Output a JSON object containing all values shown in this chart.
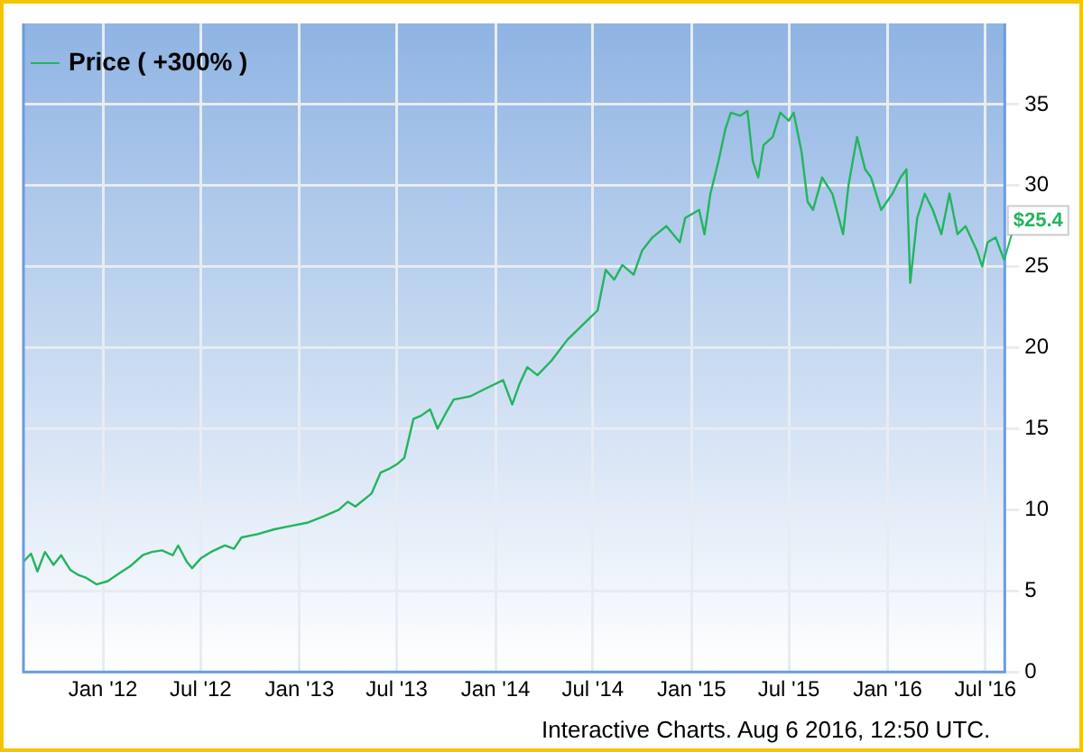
{
  "chart_data": {
    "type": "line",
    "x": [
      "2011-08-06",
      "2011-08-20",
      "2011-09-01",
      "2011-09-15",
      "2011-10-01",
      "2011-10-15",
      "2011-11-01",
      "2011-11-15",
      "2011-12-01",
      "2011-12-20",
      "2012-01-10",
      "2012-02-01",
      "2012-02-20",
      "2012-03-15",
      "2012-04-01",
      "2012-04-20",
      "2012-05-10",
      "2012-05-20",
      "2012-06-05",
      "2012-06-15",
      "2012-07-01",
      "2012-07-20",
      "2012-08-15",
      "2012-09-01",
      "2012-09-15",
      "2012-10-15",
      "2012-11-15",
      "2012-12-15",
      "2013-01-15",
      "2013-02-15",
      "2013-03-15",
      "2013-04-01",
      "2013-04-15",
      "2013-05-15",
      "2013-06-01",
      "2013-06-15",
      "2013-07-01",
      "2013-07-15",
      "2013-08-01",
      "2013-08-15",
      "2013-09-01",
      "2013-09-15",
      "2013-10-01",
      "2013-10-15",
      "2013-11-15",
      "2013-12-15",
      "2014-01-15",
      "2014-02-01",
      "2014-02-15",
      "2014-03-01",
      "2014-03-20",
      "2014-04-15",
      "2014-05-15",
      "2014-06-15",
      "2014-07-10",
      "2014-07-25",
      "2014-08-10",
      "2014-08-25",
      "2014-09-15",
      "2014-10-01",
      "2014-10-20",
      "2014-11-15",
      "2014-12-10",
      "2014-12-20",
      "2015-01-15",
      "2015-01-25",
      "2015-02-05",
      "2015-02-20",
      "2015-03-05",
      "2015-03-15",
      "2015-04-01",
      "2015-04-15",
      "2015-04-25",
      "2015-05-05",
      "2015-05-15",
      "2015-06-01",
      "2015-06-15",
      "2015-07-01",
      "2015-07-10",
      "2015-07-25",
      "2015-08-05",
      "2015-08-15",
      "2015-09-01",
      "2015-09-20",
      "2015-10-10",
      "2015-10-20",
      "2015-11-05",
      "2015-11-20",
      "2015-12-01",
      "2015-12-20",
      "2016-01-10",
      "2016-01-25",
      "2016-02-05",
      "2016-02-12",
      "2016-02-25",
      "2016-03-10",
      "2016-03-25",
      "2016-04-10",
      "2016-04-25",
      "2016-05-10",
      "2016-05-25",
      "2016-06-15",
      "2016-06-25",
      "2016-07-05",
      "2016-07-20",
      "2016-08-05"
    ],
    "series": [
      {
        "name": "Price ( +300% )",
        "color": "#22b55e",
        "values": [
          6.8,
          7.3,
          6.2,
          7.4,
          6.6,
          7.2,
          6.3,
          6.0,
          5.8,
          5.4,
          5.6,
          6.1,
          6.5,
          7.2,
          7.4,
          7.5,
          7.2,
          7.8,
          6.8,
          6.4,
          7.0,
          7.4,
          7.8,
          7.6,
          8.3,
          8.5,
          8.8,
          9.0,
          9.2,
          9.6,
          10.0,
          10.5,
          10.2,
          11.0,
          12.3,
          12.5,
          12.8,
          13.2,
          15.6,
          15.8,
          16.2,
          15.0,
          16.0,
          16.8,
          17.0,
          17.5,
          18.0,
          16.5,
          17.8,
          18.8,
          18.3,
          19.2,
          20.5,
          21.5,
          22.3,
          24.8,
          24.2,
          25.1,
          24.5,
          26.0,
          26.8,
          27.5,
          26.5,
          28.0,
          28.5,
          27.0,
          29.5,
          31.5,
          33.5,
          34.5,
          34.3,
          34.6,
          31.5,
          30.5,
          32.5,
          33.0,
          34.5,
          34.0,
          34.5,
          32.0,
          29.0,
          28.5,
          30.5,
          29.5,
          27.0,
          30.0,
          33.0,
          31.0,
          30.5,
          28.5,
          29.5,
          30.5,
          31.0,
          24.0,
          28.0,
          29.5,
          28.5,
          27.0,
          29.5,
          27.0,
          27.5,
          26.0,
          25.0,
          26.5,
          26.8,
          25.4
        ]
      }
    ],
    "xlim": [
      "2011-08-06",
      "2016-08-06"
    ],
    "xticks": [
      {
        "value": "2012-01-01",
        "label": "Jan '12"
      },
      {
        "value": "2012-07-01",
        "label": "Jul '12"
      },
      {
        "value": "2013-01-01",
        "label": "Jan '13"
      },
      {
        "value": "2013-07-01",
        "label": "Jul '13"
      },
      {
        "value": "2014-01-01",
        "label": "Jan '14"
      },
      {
        "value": "2014-07-01",
        "label": "Jul '14"
      },
      {
        "value": "2015-01-01",
        "label": "Jan '15"
      },
      {
        "value": "2015-07-01",
        "label": "Jul '15"
      },
      {
        "value": "2016-01-01",
        "label": "Jan '16"
      },
      {
        "value": "2016-07-01",
        "label": "Jul '16"
      }
    ],
    "ylim": [
      0,
      40
    ],
    "yticks": [
      0,
      5,
      10,
      15,
      20,
      25,
      30,
      35
    ],
    "grid": true,
    "legend": "top left",
    "marker": "none",
    "line_style": "solid",
    "annotations": [
      {
        "text": "$25.4",
        "x": "2016-08-05",
        "y": 25.4
      },
      "Interactive Charts. Aug 6 2016, 12:50 UTC."
    ]
  }
}
